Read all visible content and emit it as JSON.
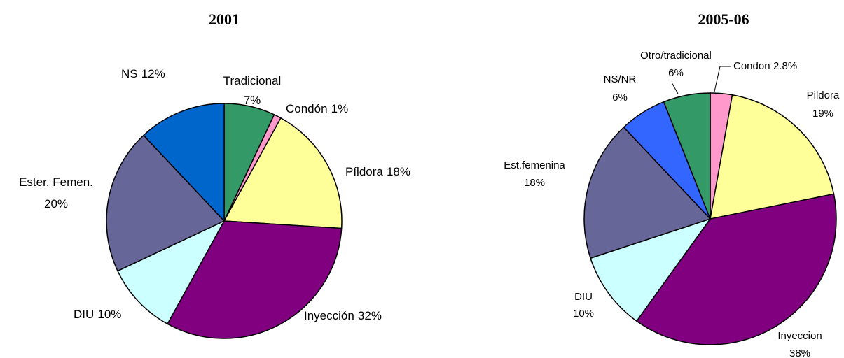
{
  "chart_data": [
    {
      "type": "pie",
      "title": "2001",
      "categories": [
        "Tradicional",
        "Condón",
        "Píldora",
        "Inyección",
        "DIU",
        "Ester. Femen.",
        "NS"
      ],
      "values": [
        7,
        1,
        18,
        32,
        10,
        20,
        12
      ],
      "value_labels": [
        "7%",
        "1%",
        "18%",
        "32%",
        "10%",
        "20%",
        "12%"
      ],
      "colors": [
        "#339966",
        "#ff99cc",
        "#ffff99",
        "#800080",
        "#ccffff",
        "#666699",
        "#0066cc"
      ]
    },
    {
      "type": "pie",
      "title": "2005-06",
      "categories": [
        "Condon",
        "Pildora",
        "Inyeccion",
        "DIU",
        "Est.femenina",
        "NS/NR",
        "Otro/tradicional"
      ],
      "values": [
        2.8,
        19,
        38,
        10,
        18,
        6,
        6
      ],
      "value_labels": [
        "2.8%",
        "19%",
        "38%",
        "10%",
        "18%",
        "6%",
        "6%"
      ],
      "colors": [
        "#ff99cc",
        "#ffff99",
        "#800080",
        "#ccffff",
        "#666699",
        "#3366ff",
        "#339966"
      ]
    }
  ]
}
